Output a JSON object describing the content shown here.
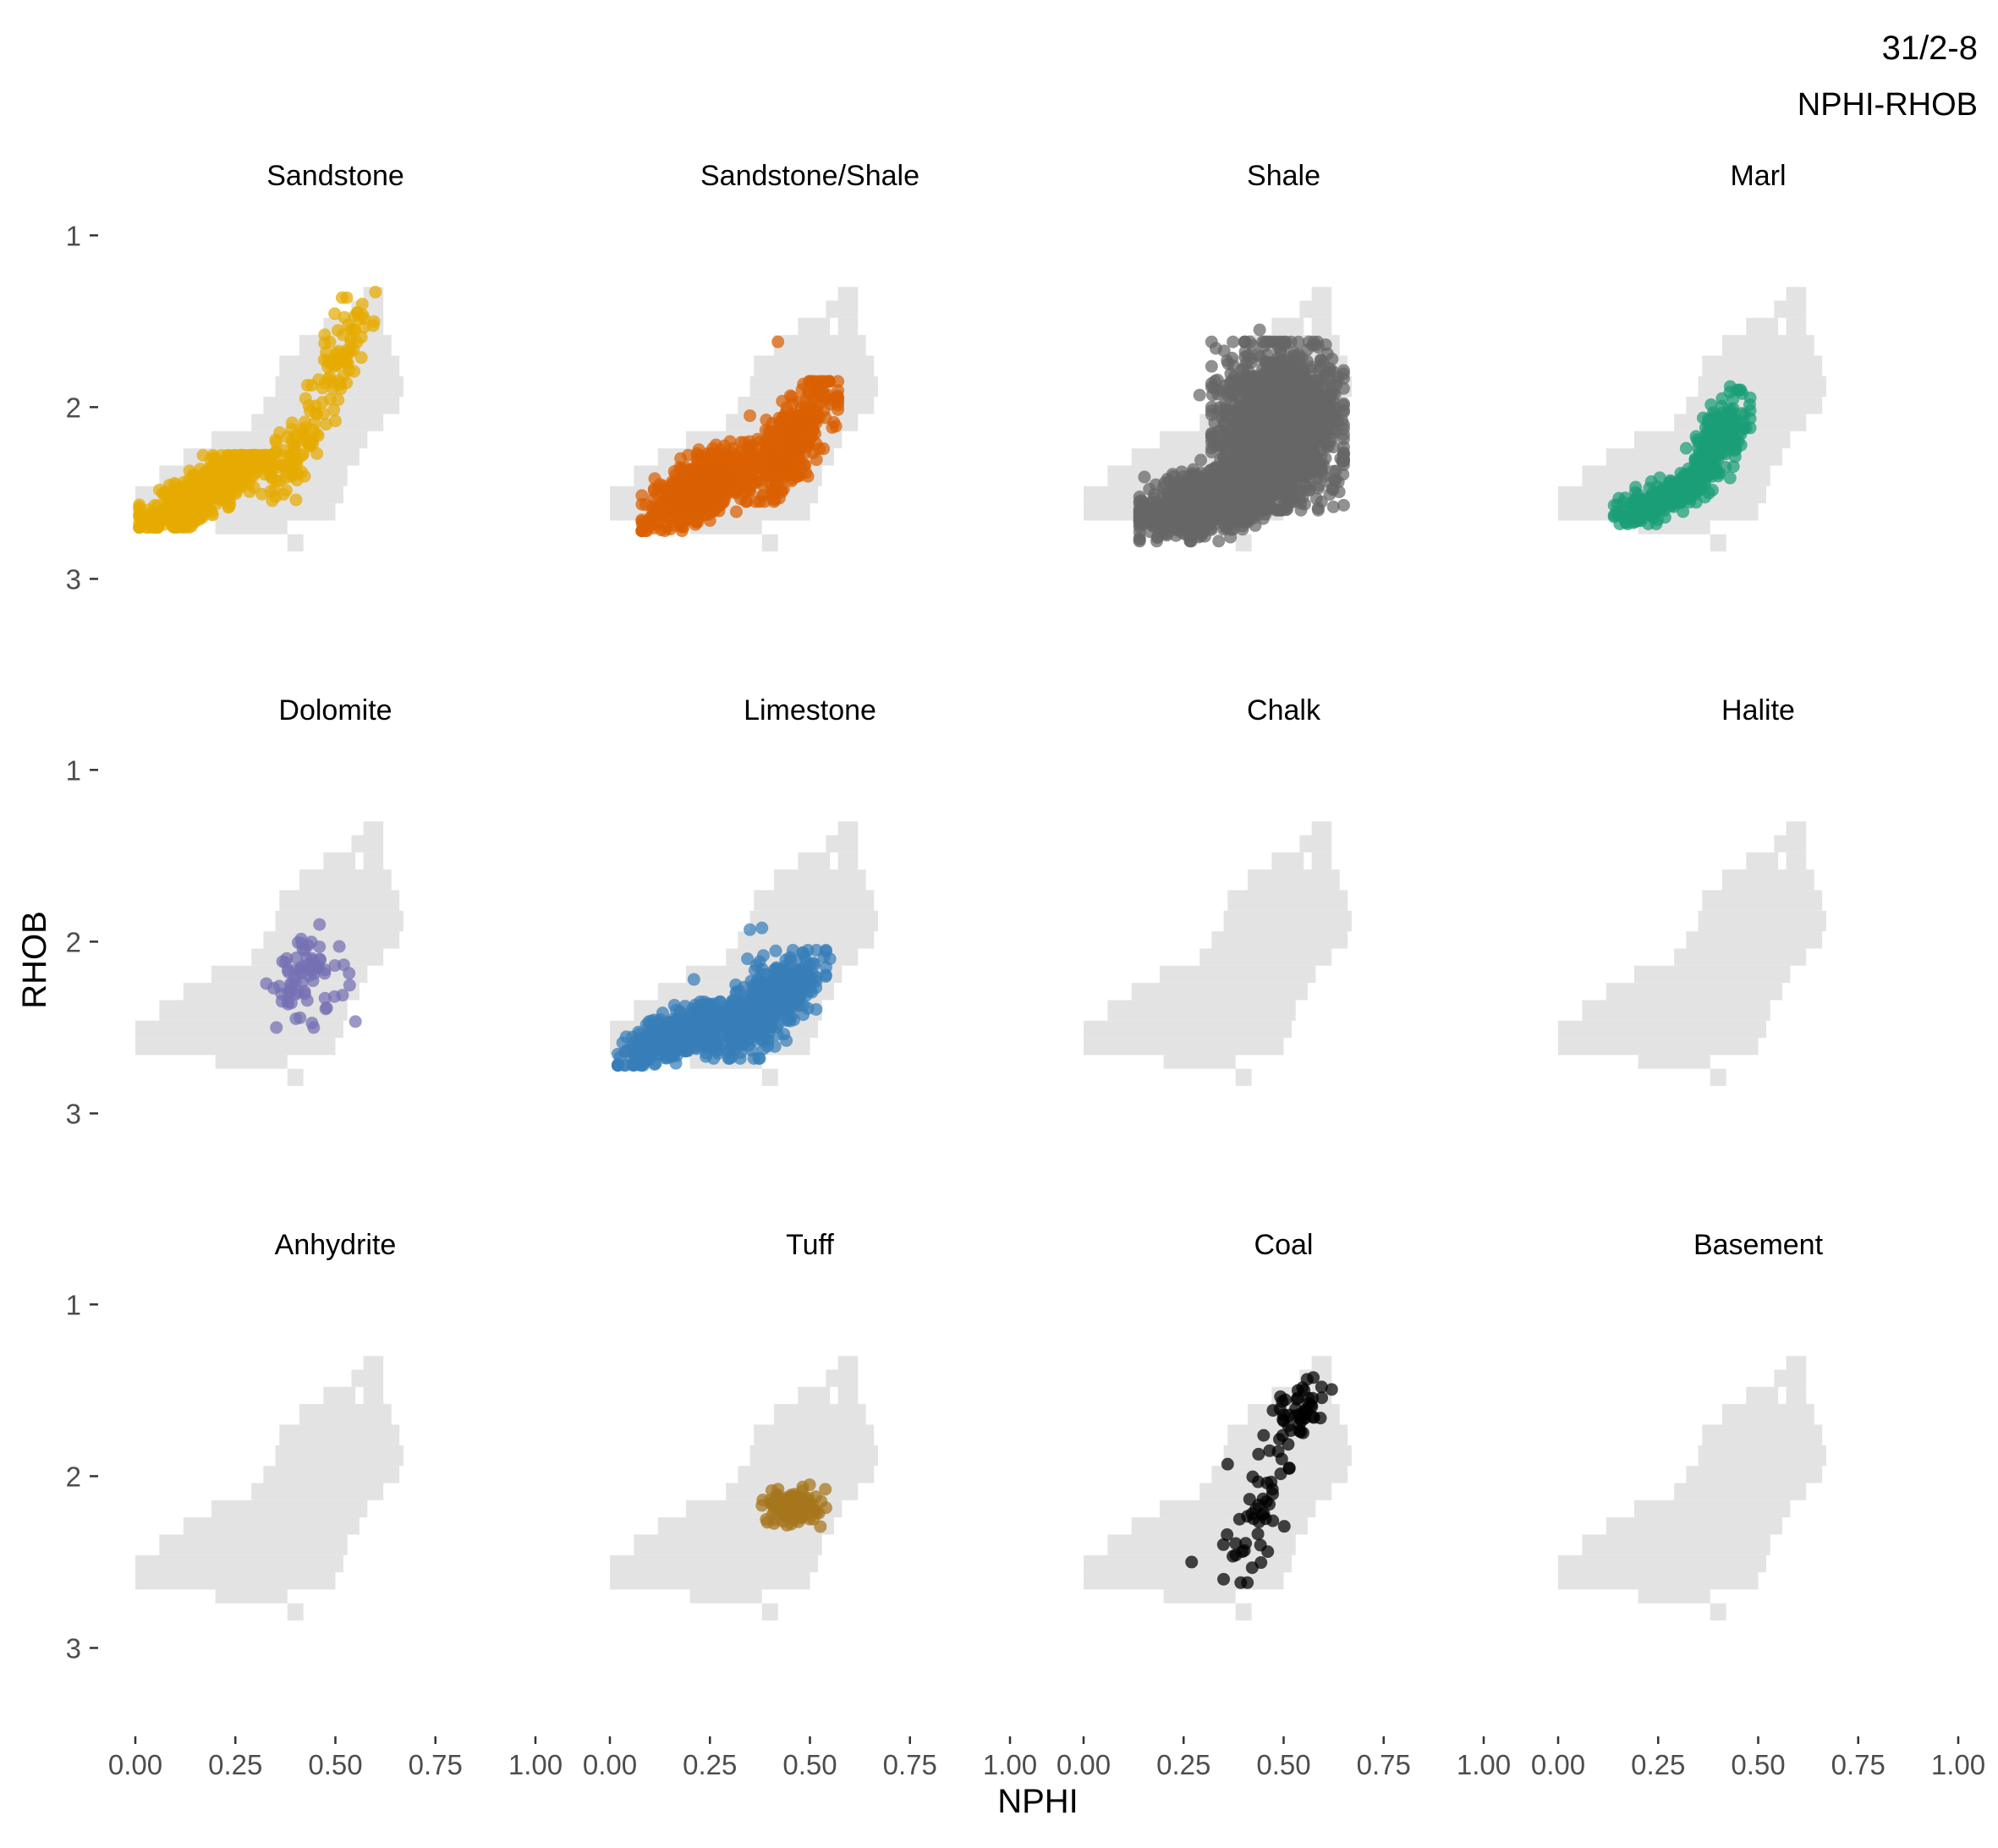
{
  "chart_data": {
    "type": "scatter",
    "title": "31/2-8",
    "subtitle": "NPHI-RHOB",
    "xlabel": "NPHI",
    "ylabel": "RHOB",
    "xlim": [
      0,
      1
    ],
    "ylim": [
      3.5,
      0.9
    ],
    "y_reversed": true,
    "grid": false,
    "x_ticks": [
      "0.00",
      "0.25",
      "0.50",
      "0.75",
      "1.00"
    ],
    "y_ticks": [
      "1",
      "2",
      "3"
    ],
    "background_color": "#e3e3e3",
    "panels": [
      {
        "name": "Sandstone",
        "color": "#e6ab02",
        "count": 700,
        "clusters": [
          {
            "weight": 0.78,
            "x": [
              0.01,
              0.34
            ],
            "y": [
              2.28,
              2.7
            ],
            "trend": -1.3
          },
          {
            "weight": 0.12,
            "x": [
              0.3,
              0.5
            ],
            "y": [
              1.95,
              2.55
            ],
            "trend": -2.5
          },
          {
            "weight": 0.1,
            "x": [
              0.43,
              0.6
            ],
            "y": [
              1.33,
              2.05
            ],
            "trend": -3.0
          }
        ],
        "extras": []
      },
      {
        "name": "Sandstone/Shale",
        "color": "#d95f02",
        "count": 900,
        "clusters": [
          {
            "weight": 0.62,
            "x": [
              0.08,
              0.4
            ],
            "y": [
              2.2,
              2.72
            ],
            "trend": -1.2
          },
          {
            "weight": 0.38,
            "x": [
              0.34,
              0.57
            ],
            "y": [
              1.85,
              2.55
            ],
            "trend": -2.6
          }
        ],
        "extras": [
          {
            "x": 0.42,
            "y": 1.62
          },
          {
            "x": 0.35,
            "y": 2.05
          },
          {
            "x": 0.14,
            "y": 2.6
          }
        ]
      },
      {
        "name": "Shale",
        "color": "#666666",
        "count": 2600,
        "clusters": [
          {
            "weight": 0.45,
            "x": [
              0.14,
              0.52
            ],
            "y": [
              2.28,
              2.78
            ],
            "trend": -0.6
          },
          {
            "weight": 0.55,
            "x": [
              0.32,
              0.65
            ],
            "y": [
              1.62,
              2.6
            ],
            "trend": 0
          }
        ],
        "extras": [
          {
            "x": 0.29,
            "y": 2.73
          },
          {
            "x": 0.29,
            "y": 1.93
          },
          {
            "x": 0.44,
            "y": 1.55
          },
          {
            "x": 0.65,
            "y": 1.98
          }
        ]
      },
      {
        "name": "Marl",
        "color": "#1b9e77",
        "count": 420,
        "clusters": [
          {
            "weight": 0.55,
            "x": [
              0.14,
              0.4
            ],
            "y": [
              2.38,
              2.68
            ],
            "trend": -1.0
          },
          {
            "weight": 0.45,
            "x": [
              0.32,
              0.48
            ],
            "y": [
              1.9,
              2.5
            ],
            "trend": -2.5
          }
        ],
        "extras": [
          {
            "x": 0.43,
            "y": 1.88
          },
          {
            "x": 0.41,
            "y": 1.95
          }
        ]
      },
      {
        "name": "Dolomite",
        "color": "#7570b3",
        "count": 75,
        "clusters": [
          {
            "weight": 1.0,
            "x": [
              0.32,
              0.55
            ],
            "y": [
              1.9,
              2.5
            ],
            "trend": 0
          }
        ],
        "extras": []
      },
      {
        "name": "Limestone",
        "color": "#377eb8",
        "count": 900,
        "clusters": [
          {
            "weight": 0.45,
            "x": [
              0.02,
              0.32
            ],
            "y": [
              2.35,
              2.72
            ],
            "trend": -1.0
          },
          {
            "weight": 0.55,
            "x": [
              0.24,
              0.54
            ],
            "y": [
              2.05,
              2.68
            ],
            "trend": -1.5
          }
        ],
        "extras": [
          {
            "x": 0.35,
            "y": 1.93
          },
          {
            "x": 0.38,
            "y": 1.92
          },
          {
            "x": 0.55,
            "y": 2.1
          },
          {
            "x": 0.21,
            "y": 2.22
          }
        ]
      },
      {
        "name": "Chalk",
        "color": "#666666",
        "count": 0,
        "clusters": [],
        "extras": []
      },
      {
        "name": "Halite",
        "color": "#666666",
        "count": 0,
        "clusters": [],
        "extras": []
      },
      {
        "name": "Anhydrite",
        "color": "#666666",
        "count": 0,
        "clusters": [],
        "extras": []
      },
      {
        "name": "Tuff",
        "color": "#a6761d",
        "count": 110,
        "clusters": [
          {
            "weight": 1.0,
            "x": [
              0.38,
              0.54
            ],
            "y": [
              2.05,
              2.3
            ],
            "trend": 0
          }
        ],
        "extras": []
      },
      {
        "name": "Coal",
        "color": "#000000",
        "count": 90,
        "clusters": [
          {
            "weight": 0.55,
            "x": [
              0.45,
              0.62
            ],
            "y": [
              1.38,
              1.9
            ],
            "trend": -2.0
          },
          {
            "weight": 0.45,
            "x": [
              0.33,
              0.55
            ],
            "y": [
              1.85,
              2.62
            ],
            "trend": -2.5
          }
        ],
        "extras": [
          {
            "x": 0.27,
            "y": 2.5
          },
          {
            "x": 0.35,
            "y": 2.6
          },
          {
            "x": 0.36,
            "y": 1.93
          }
        ]
      },
      {
        "name": "Basement",
        "color": "#666666",
        "count": 0,
        "clusters": [],
        "extras": []
      }
    ]
  }
}
